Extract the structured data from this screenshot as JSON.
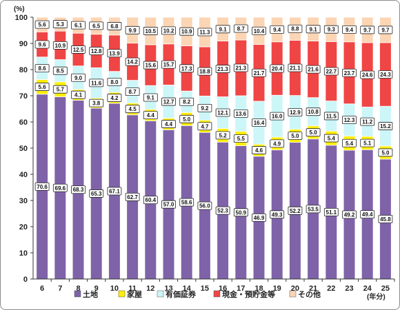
{
  "chart_data": {
    "type": "bar",
    "stacked": true,
    "y_unit": "(%)",
    "x_unit": "(年分)",
    "ylim": [
      0,
      100
    ],
    "yticks": [
      0,
      10,
      20,
      30,
      40,
      50,
      60,
      70,
      80,
      90,
      100
    ],
    "grid": false,
    "legend_position": "bottom",
    "categories": [
      "6",
      "7",
      "8",
      "9",
      "10",
      "11",
      "12",
      "13",
      "14",
      "15",
      "16",
      "17",
      "18",
      "19",
      "20",
      "21",
      "22",
      "23",
      "24",
      "25"
    ],
    "series": [
      {
        "name": "土地",
        "color": "#7f63a8",
        "values": [
          70.6,
          69.6,
          68.3,
          65.3,
          67.1,
          62.7,
          60.4,
          57.0,
          58.6,
          56.0,
          52.3,
          50.9,
          46.9,
          49.3,
          52.2,
          53.5,
          51.1,
          49.2,
          49.4,
          45.8
        ]
      },
      {
        "name": "家屋",
        "color": "#ffee00",
        "values": [
          5.6,
          5.7,
          4.1,
          3.8,
          4.2,
          4.5,
          4.4,
          4.4,
          5.0,
          4.7,
          5.2,
          5.5,
          4.6,
          4.9,
          5.0,
          5.0,
          5.4,
          5.4,
          5.1,
          5.0
        ]
      },
      {
        "name": "有価証券",
        "color": "#ccf6f8",
        "values": [
          8.6,
          8.5,
          9.0,
          11.6,
          8.0,
          8.7,
          9.1,
          12.7,
          8.2,
          9.2,
          12.1,
          13.6,
          16.4,
          16.0,
          12.9,
          10.8,
          11.5,
          12.3,
          11.2,
          15.2
        ]
      },
      {
        "name": "現金・預貯金等",
        "color": "#f04545",
        "values": [
          9.6,
          10.9,
          12.5,
          12.8,
          13.9,
          14.2,
          15.6,
          15.7,
          17.3,
          18.8,
          21.3,
          21.3,
          21.7,
          20.4,
          21.1,
          21.6,
          22.7,
          23.7,
          24.6,
          24.3
        ]
      },
      {
        "name": "その他",
        "color": "#fbd5b4",
        "values": [
          5.6,
          5.3,
          6.1,
          6.5,
          6.8,
          9.9,
          10.5,
          10.2,
          10.9,
          11.3,
          9.1,
          8.7,
          10.4,
          9.4,
          8.8,
          9.1,
          9.3,
          9.4,
          9.7,
          9.7
        ]
      }
    ]
  }
}
